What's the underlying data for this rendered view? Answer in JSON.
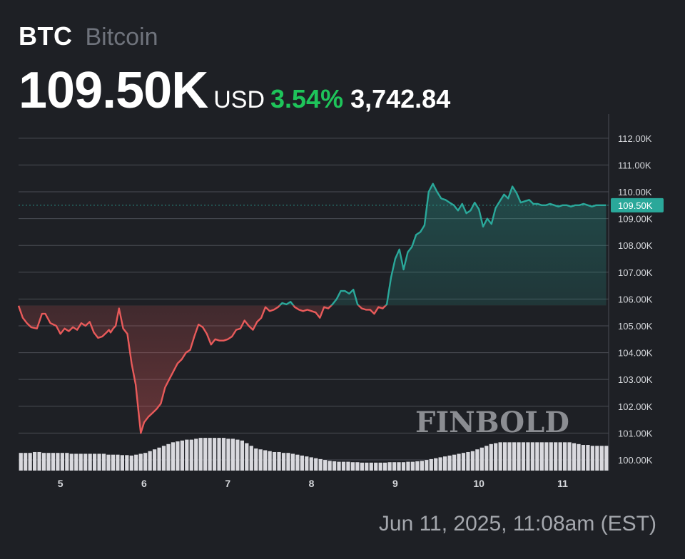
{
  "header": {
    "ticker": "BTC",
    "name": "Bitcoin",
    "price": "109.50K",
    "currency": "USD",
    "change_pct": "3.54%",
    "change_abs": "3,742.84"
  },
  "timestamp": "Jun 11, 2025, 11:08am (EST)",
  "watermark": "FINBOLD",
  "colors": {
    "background": "#1e2025",
    "up": "#2aa89a",
    "down": "#e85a5a",
    "change_pct": "#1ec45a",
    "volume": "#d9d9de",
    "grid": "#4a4d55"
  },
  "chart_data": {
    "type": "line",
    "ylim": [
      99.6,
      112.9
    ],
    "xlim": [
      4.5,
      11.55
    ],
    "y_ticks": [
      "112.00K",
      "111.00K",
      "110.00K",
      "109.00K",
      "108.00K",
      "107.00K",
      "106.00K",
      "105.00K",
      "104.00K",
      "103.00K",
      "102.00K",
      "101.00K",
      "100.00K"
    ],
    "y_tick_values": [
      112,
      111,
      110,
      109,
      108,
      107,
      106,
      105,
      104,
      103,
      102,
      101,
      100
    ],
    "x_ticks": [
      "5",
      "6",
      "7",
      "8",
      "9",
      "10",
      "11"
    ],
    "x_tick_values": [
      5,
      6,
      7,
      8,
      9,
      10,
      11
    ],
    "reference_value": 105.76,
    "current_label": "109.50K",
    "current_value": 109.5,
    "series": [
      {
        "x": [
          4.5,
          4.55,
          4.6,
          4.65,
          4.72,
          4.78,
          4.82,
          4.88,
          4.95,
          5.0,
          5.05,
          5.1,
          5.15,
          5.2,
          5.25,
          5.3,
          5.35,
          5.4,
          5.45,
          5.5,
          5.55,
          5.58,
          5.6,
          5.63,
          5.66,
          5.7,
          5.75,
          5.8,
          5.85,
          5.9,
          5.93,
          5.96,
          6.0,
          6.05,
          6.1,
          6.15,
          6.2,
          6.25,
          6.3,
          6.35,
          6.4,
          6.45,
          6.5,
          6.55,
          6.6,
          6.65,
          6.7,
          6.75,
          6.8,
          6.85,
          6.9,
          6.95,
          7.0,
          7.05,
          7.1,
          7.15,
          7.2,
          7.25,
          7.3,
          7.35,
          7.4,
          7.45,
          7.5,
          7.55,
          7.6,
          7.65,
          7.7,
          7.75,
          7.8,
          7.85,
          7.9,
          7.95,
          8.0,
          8.05,
          8.1,
          8.15,
          8.2,
          8.25,
          8.3,
          8.35,
          8.4,
          8.45,
          8.5,
          8.55,
          8.6,
          8.65,
          8.7,
          8.75,
          8.8,
          8.85,
          8.9,
          8.95,
          9.0,
          9.05,
          9.1,
          9.15,
          9.2,
          9.25,
          9.3,
          9.35,
          9.4,
          9.45,
          9.5,
          9.55,
          9.6,
          9.65,
          9.7,
          9.75,
          9.8,
          9.85,
          9.9,
          9.95,
          10.0,
          10.05,
          10.1,
          10.15,
          10.2,
          10.25,
          10.3,
          10.35,
          10.4,
          10.45,
          10.5,
          10.55,
          10.6,
          10.65,
          10.7,
          10.75,
          10.8,
          10.85,
          10.9,
          10.95,
          11.0,
          11.05,
          11.1,
          11.15,
          11.2,
          11.25,
          11.3,
          11.35,
          11.4,
          11.45,
          11.5,
          11.52
        ],
        "y": [
          105.75,
          105.3,
          105.1,
          104.95,
          104.9,
          105.45,
          105.45,
          105.1,
          105.0,
          104.7,
          104.9,
          104.8,
          104.95,
          104.85,
          105.1,
          105.0,
          105.15,
          104.75,
          104.55,
          104.6,
          104.75,
          104.85,
          104.75,
          104.9,
          105.0,
          105.65,
          104.9,
          104.7,
          103.6,
          102.8,
          101.9,
          101.0,
          101.4,
          101.6,
          101.75,
          101.9,
          102.1,
          102.7,
          103.0,
          103.3,
          103.6,
          103.75,
          104.0,
          104.1,
          104.6,
          105.05,
          104.95,
          104.7,
          104.3,
          104.5,
          104.45,
          104.45,
          104.5,
          104.6,
          104.85,
          104.9,
          105.2,
          105.0,
          104.85,
          105.15,
          105.3,
          105.7,
          105.55,
          105.6,
          105.7,
          105.85,
          105.8,
          105.9,
          105.7,
          105.6,
          105.55,
          105.6,
          105.55,
          105.5,
          105.3,
          105.7,
          105.65,
          105.8,
          106.0,
          106.3,
          106.3,
          106.2,
          106.35,
          105.8,
          105.65,
          105.6,
          105.6,
          105.45,
          105.7,
          105.65,
          105.8,
          106.8,
          107.5,
          107.85,
          107.1,
          107.75,
          107.95,
          108.4,
          108.5,
          108.75,
          110.0,
          110.3,
          110.0,
          109.75,
          109.7,
          109.6,
          109.5,
          109.3,
          109.55,
          109.2,
          109.3,
          109.6,
          109.35,
          108.7,
          109.0,
          108.8,
          109.4,
          109.65,
          109.9,
          109.75,
          110.2,
          109.95,
          109.6,
          109.65,
          109.7,
          109.55,
          109.55,
          109.5,
          109.5,
          109.55,
          109.5,
          109.45,
          109.5,
          109.5,
          109.45,
          109.5,
          109.5,
          109.55,
          109.5,
          109.45,
          109.5,
          109.5,
          109.5,
          109.5
        ]
      }
    ],
    "volume": [
      40,
      40,
      40,
      42,
      42,
      40,
      40,
      40,
      40,
      40,
      40,
      38,
      38,
      38,
      38,
      38,
      38,
      38,
      38,
      36,
      36,
      36,
      35,
      35,
      34,
      36,
      38,
      40,
      44,
      48,
      52,
      56,
      60,
      64,
      66,
      68,
      70,
      70,
      72,
      74,
      74,
      74,
      74,
      74,
      74,
      72,
      72,
      70,
      68,
      62,
      56,
      50,
      48,
      46,
      44,
      42,
      42,
      40,
      40,
      38,
      36,
      34,
      32,
      30,
      28,
      26,
      24,
      22,
      21,
      20,
      20,
      20,
      19,
      19,
      18,
      18,
      18,
      18,
      18,
      18,
      19,
      19,
      19,
      19,
      20,
      20,
      21,
      22,
      24,
      26,
      28,
      30,
      32,
      34,
      36,
      38,
      40,
      42,
      44,
      48,
      52,
      56,
      60,
      62,
      64,
      64,
      64,
      64,
      64,
      64,
      64,
      64,
      64,
      64,
      64,
      64,
      64,
      64,
      64,
      64,
      62,
      60,
      58,
      58,
      56,
      56,
      56,
      56
    ]
  }
}
